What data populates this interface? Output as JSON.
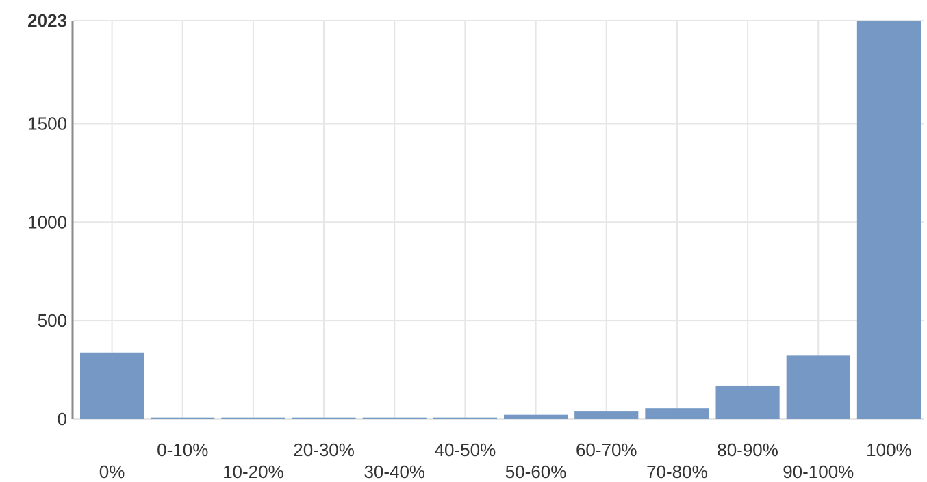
{
  "chart_data": {
    "type": "bar",
    "categories": [
      "0%",
      "0-10%",
      "10-20%",
      "20-30%",
      "30-40%",
      "40-50%",
      "50-60%",
      "60-70%",
      "70-80%",
      "80-90%",
      "90-100%",
      "100%"
    ],
    "values": [
      338,
      8,
      8,
      8,
      8,
      8,
      22,
      38,
      55,
      167,
      322,
      2023
    ],
    "ylim": [
      0,
      2023
    ],
    "yticks": [
      "0",
      "500",
      "1000",
      "1500",
      "2023"
    ],
    "grid": true,
    "colors": {
      "bar": "#7599c4",
      "grid": "#e6e6e6",
      "axis": "#8a8a8a"
    }
  }
}
